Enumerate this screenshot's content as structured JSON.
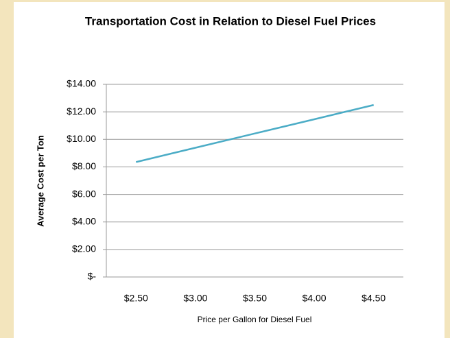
{
  "chart_data": {
    "type": "line",
    "title": "Transportation Cost in Relation to Diesel Fuel Prices",
    "x_label": "Price per Gallon for Diesel Fuel",
    "y_label": "Average Cost per Ton",
    "categories": [
      "$2.50",
      "$3.00",
      "$3.50",
      "$4.00",
      "$4.50"
    ],
    "series": [
      {
        "name": "Average Cost per Ton",
        "color": "#4bacc6",
        "values": [
          8.35,
          9.39,
          10.43,
          11.46,
          12.5
        ]
      }
    ],
    "ylim": [
      0,
      14
    ],
    "yticks": [
      {
        "value": 0,
        "label": "$-"
      },
      {
        "value": 2,
        "label": "$2.00"
      },
      {
        "value": 4,
        "label": "$4.00"
      },
      {
        "value": 6,
        "label": "$6.00"
      },
      {
        "value": 8,
        "label": "$8.00"
      },
      {
        "value": 10,
        "label": "$10.00"
      },
      {
        "value": 12,
        "label": "$12.00"
      },
      {
        "value": 14,
        "label": "$14.00"
      }
    ],
    "grid": true
  }
}
